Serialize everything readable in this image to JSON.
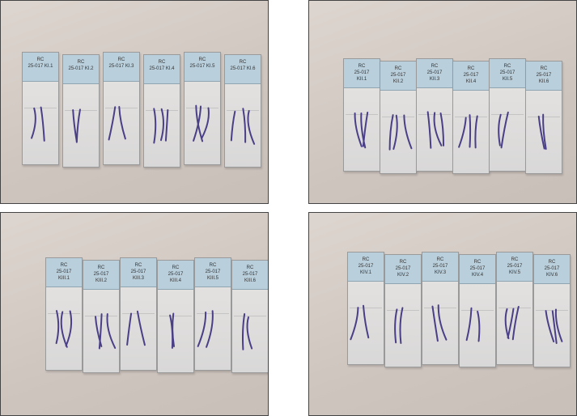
{
  "panels": [
    {
      "labels": [
        [
          "RC",
          "25-017 KI.1"
        ],
        [
          "RC",
          "25-017 KI.2"
        ],
        [
          "RC",
          "25-017 KI.3"
        ],
        [
          "RC",
          "25-017 KI.4"
        ],
        [
          "RC",
          "25-017 KI.5"
        ],
        [
          "RC",
          "25-017 KI.6"
        ]
      ]
    },
    {
      "labels": [
        [
          "RC",
          "25-017",
          "KII.1"
        ],
        [
          "RC",
          "25-017",
          "KII.2"
        ],
        [
          "RC",
          "25-017",
          "KII.3"
        ],
        [
          "RC",
          "25-017",
          "KII.4"
        ],
        [
          "RC",
          "25-017",
          "KII.5"
        ],
        [
          "RC",
          "25-017",
          "KII.6"
        ]
      ]
    },
    {
      "labels": [
        [
          "RC",
          "25-017",
          "KIII.1"
        ],
        [
          "RC",
          "25-017",
          "KIII.2"
        ],
        [
          "RC",
          "25-017",
          "KIII.3"
        ],
        [
          "RC",
          "25-017",
          "KIII.4"
        ],
        [
          "RC",
          "25-017",
          "KIII.5"
        ],
        [
          "RC",
          "25-017",
          "KIII.6"
        ]
      ]
    },
    {
      "labels": [
        [
          "RC",
          "25-017",
          "KIV.1"
        ],
        [
          "RC",
          "25-017",
          "KIV.2"
        ],
        [
          "RC",
          "25-017",
          "KIV.3"
        ],
        [
          "RC",
          "25-017",
          "KIV.4"
        ],
        [
          "RC",
          "25-017",
          "KIV.5"
        ],
        [
          "RC",
          "25-017",
          "KIV.6"
        ]
      ]
    }
  ],
  "colors": {
    "label": "#b9cfdc",
    "tissue": "#4a3f86",
    "background": "#d5ccc6"
  }
}
